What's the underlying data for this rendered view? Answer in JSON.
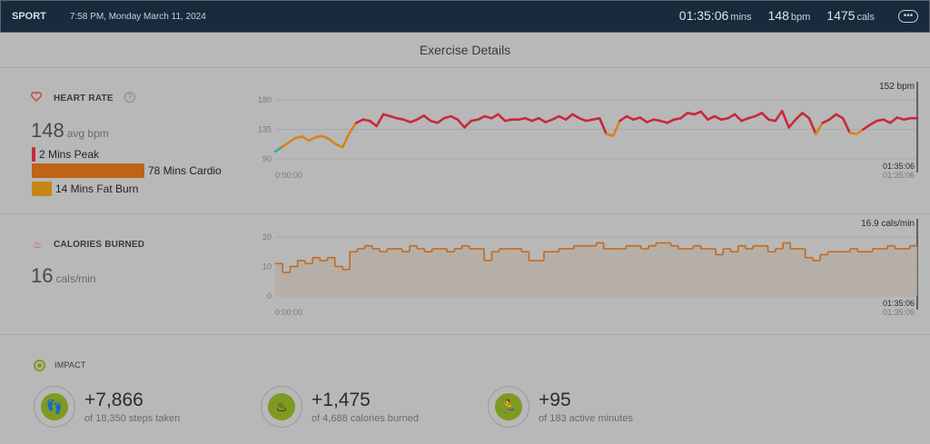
{
  "header": {
    "sport": "SPORT",
    "datetime": "7:58 PM, Monday March 11, 2024",
    "duration": "01:35:06",
    "duration_unit": "mins",
    "bpm": "148",
    "bpm_unit": "bpm",
    "cals": "1475",
    "cals_unit": "cals",
    "more_icon": "ellipsis-icon"
  },
  "page_title": "Exercise Details",
  "heart_rate": {
    "label": "HEART RATE",
    "help": "?",
    "avg": "148",
    "avg_unit": "avg bpm",
    "zones": [
      {
        "label": "2 Mins Peak",
        "minutes": 2,
        "color": "#c8293a"
      },
      {
        "label": "78 Mins Cardio",
        "minutes": 78,
        "color": "#bf6314"
      },
      {
        "label": "14 Mins Fat Burn",
        "minutes": 14,
        "color": "#c48614"
      }
    ]
  },
  "calories": {
    "label": "CALORIES BURNED",
    "value": "16",
    "unit": "cals/min"
  },
  "impact": {
    "label": "IMPACT",
    "items": [
      {
        "icon": "footsteps-icon",
        "value": "+7,866",
        "sub": "of 18,350 steps taken"
      },
      {
        "icon": "flame-icon",
        "value": "+1,475",
        "sub": "of 4,688 calories burned"
      },
      {
        "icon": "running-person-icon",
        "value": "+95",
        "sub": "of 183 active minutes"
      }
    ]
  },
  "colors": {
    "peak": "#c8293a",
    "cardio": "#d9821a",
    "fatburn": "#3aa8a0",
    "calories": "#c46a1e",
    "header_bg": "#182a3b",
    "impact": "#7f9a22"
  },
  "chart_data": [
    {
      "type": "line",
      "ylabel": "",
      "yticks": [
        90,
        135,
        180
      ],
      "ylim": [
        90,
        180
      ],
      "x_start_label": "0:00:00",
      "x_end_label": "01:35:06",
      "cursor_label": "01:35:06",
      "current_value_label": "152 bpm",
      "x_unit": "minutes",
      "values": [
        101,
        108,
        115,
        122,
        124,
        118,
        123,
        125,
        120,
        112,
        108,
        130,
        145,
        150,
        148,
        140,
        158,
        155,
        152,
        150,
        146,
        150,
        156,
        148,
        145,
        152,
        155,
        150,
        138,
        148,
        150,
        155,
        152,
        158,
        148,
        150,
        150,
        152,
        148,
        152,
        146,
        150,
        155,
        150,
        158,
        152,
        148,
        150,
        152,
        128,
        125,
        148,
        155,
        150,
        153,
        146,
        150,
        148,
        145,
        150,
        152,
        160,
        158,
        162,
        150,
        155,
        150,
        152,
        158,
        148,
        152,
        155,
        160,
        150,
        148,
        163,
        138,
        150,
        160,
        152,
        128,
        145,
        150,
        158,
        152,
        130,
        128,
        135,
        142,
        148,
        150,
        145,
        153,
        150,
        152,
        152
      ]
    },
    {
      "type": "area",
      "ylabel": "",
      "yticks": [
        0,
        10,
        20
      ],
      "ylim": [
        0,
        20
      ],
      "x_start_label": "0:00:00",
      "x_end_label": "01:35:06",
      "cursor_label": "01:35:06",
      "current_value_label": "16.9 cals/min",
      "step": true,
      "values": [
        11,
        8,
        10,
        12,
        11,
        13,
        12,
        13,
        10,
        9,
        15,
        16,
        17,
        16,
        15,
        16,
        16,
        15,
        17,
        16,
        15,
        16,
        16,
        15,
        16,
        17,
        16,
        16,
        12,
        15,
        16,
        16,
        16,
        15,
        12,
        12,
        15,
        15,
        16,
        16,
        17,
        17,
        17,
        18,
        16,
        16,
        16,
        17,
        17,
        16,
        17,
        18,
        18,
        17,
        16,
        16,
        17,
        16,
        16,
        14,
        16,
        15,
        17,
        16,
        17,
        17,
        15,
        16,
        18,
        16,
        16,
        13,
        12,
        14,
        15,
        15,
        15,
        16,
        15,
        15,
        16,
        16,
        17,
        16,
        16,
        17
      ]
    }
  ]
}
